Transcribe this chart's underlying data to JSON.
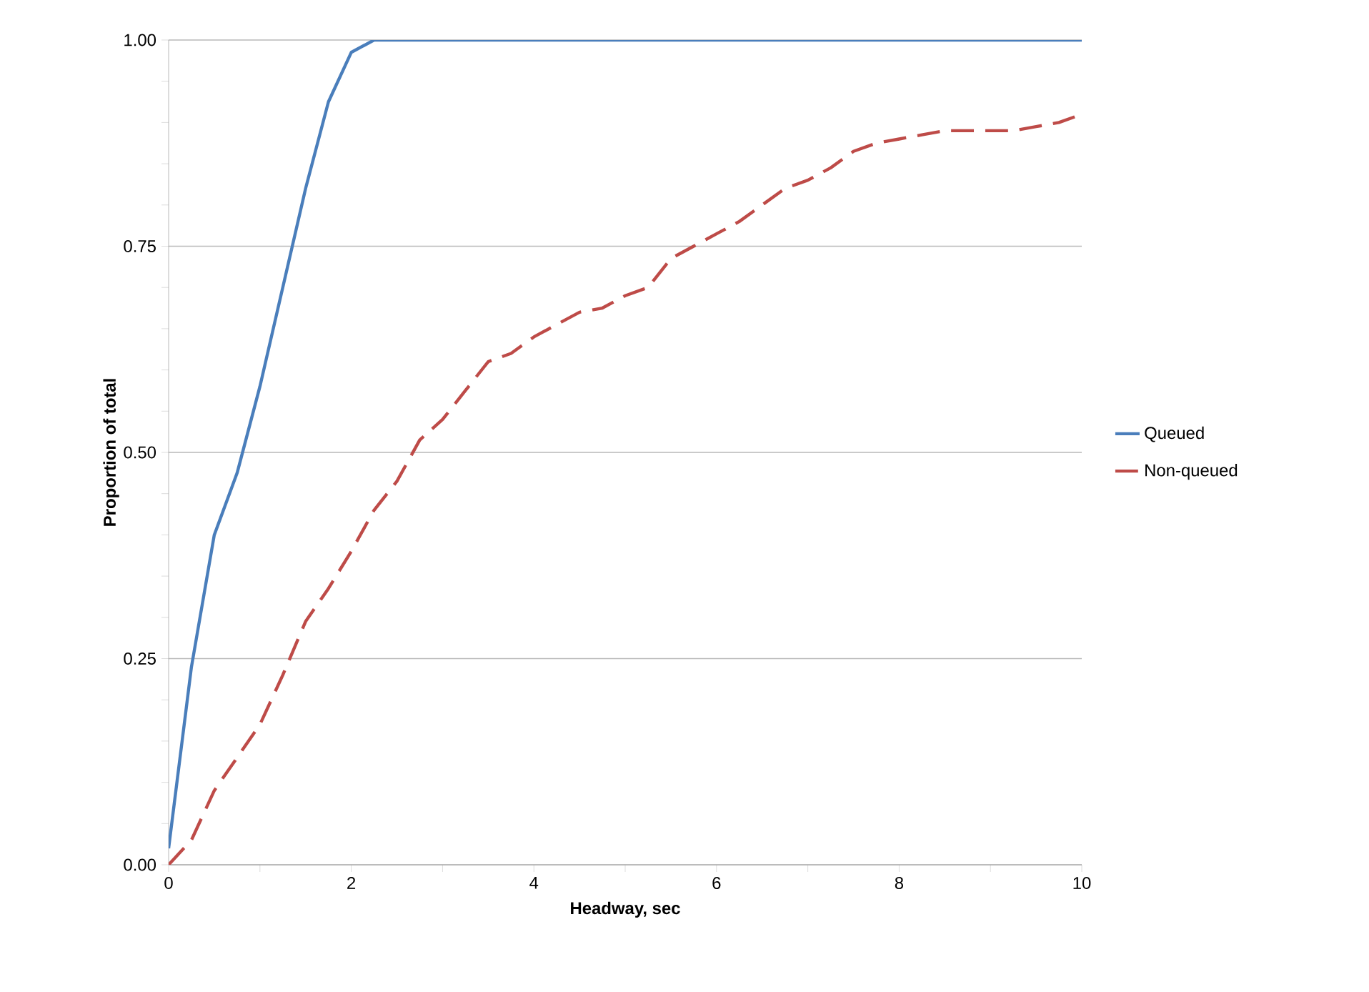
{
  "chart_data": {
    "type": "line",
    "xlabel": "Headway, sec",
    "ylabel": "Proportion of total",
    "x": [
      0,
      0.25,
      0.5,
      0.75,
      1,
      1.25,
      1.5,
      1.75,
      2,
      2.25,
      2.5,
      2.75,
      3,
      3.25,
      3.5,
      3.75,
      4,
      4.25,
      4.5,
      4.75,
      5,
      5.25,
      5.5,
      5.75,
      6,
      6.25,
      6.5,
      6.75,
      7,
      7.25,
      7.5,
      7.75,
      8,
      8.25,
      8.5,
      8.75,
      9,
      9.25,
      9.5,
      9.75,
      10
    ],
    "series": [
      {
        "name": "Queued",
        "color": "#4a7ebb",
        "line_style": "solid",
        "values": [
          0.02,
          0.24,
          0.4,
          0.475,
          0.58,
          0.7,
          0.82,
          0.925,
          0.985,
          1,
          1,
          1,
          1,
          1,
          1,
          1,
          1,
          1,
          1,
          1,
          1,
          1,
          1,
          1,
          1,
          1,
          1,
          1,
          1,
          1,
          1,
          1,
          1,
          1,
          1,
          1,
          1,
          1,
          1,
          1,
          1
        ]
      },
      {
        "name": "Non-queued",
        "color": "#be4b48",
        "line_style": "dashed",
        "values": [
          0,
          0.03,
          0.09,
          0.13,
          0.17,
          0.23,
          0.295,
          0.335,
          0.38,
          0.43,
          0.465,
          0.515,
          0.54,
          0.575,
          0.61,
          0.62,
          0.64,
          0.655,
          0.67,
          0.675,
          0.69,
          0.7,
          0.735,
          0.75,
          0.765,
          0.78,
          0.8,
          0.82,
          0.83,
          0.845,
          0.865,
          0.875,
          0.88,
          0.885,
          0.89,
          0.89,
          0.89,
          0.89,
          0.895,
          0.9,
          0.91
        ]
      }
    ],
    "xlim": [
      0,
      10
    ],
    "xticks": [
      0,
      {
        "value": 1,
        "label": null
      },
      2,
      {
        "value": 3,
        "label": null
      },
      4,
      {
        "value": 5,
        "label": null
      },
      6,
      {
        "value": 7,
        "label": null
      },
      8,
      {
        "value": 9,
        "label": null
      },
      10
    ],
    "ylim": [
      0,
      1
    ],
    "yticks": [
      {
        "value": 0,
        "label": "0.00"
      },
      {
        "value": 0.25,
        "label": "0.25"
      },
      {
        "value": 0.5,
        "label": "0.50"
      },
      {
        "value": 0.75,
        "label": "0.75"
      },
      {
        "value": 1,
        "label": "1.00"
      }
    ],
    "grid": "y",
    "legend": "right",
    "marker": "none"
  }
}
